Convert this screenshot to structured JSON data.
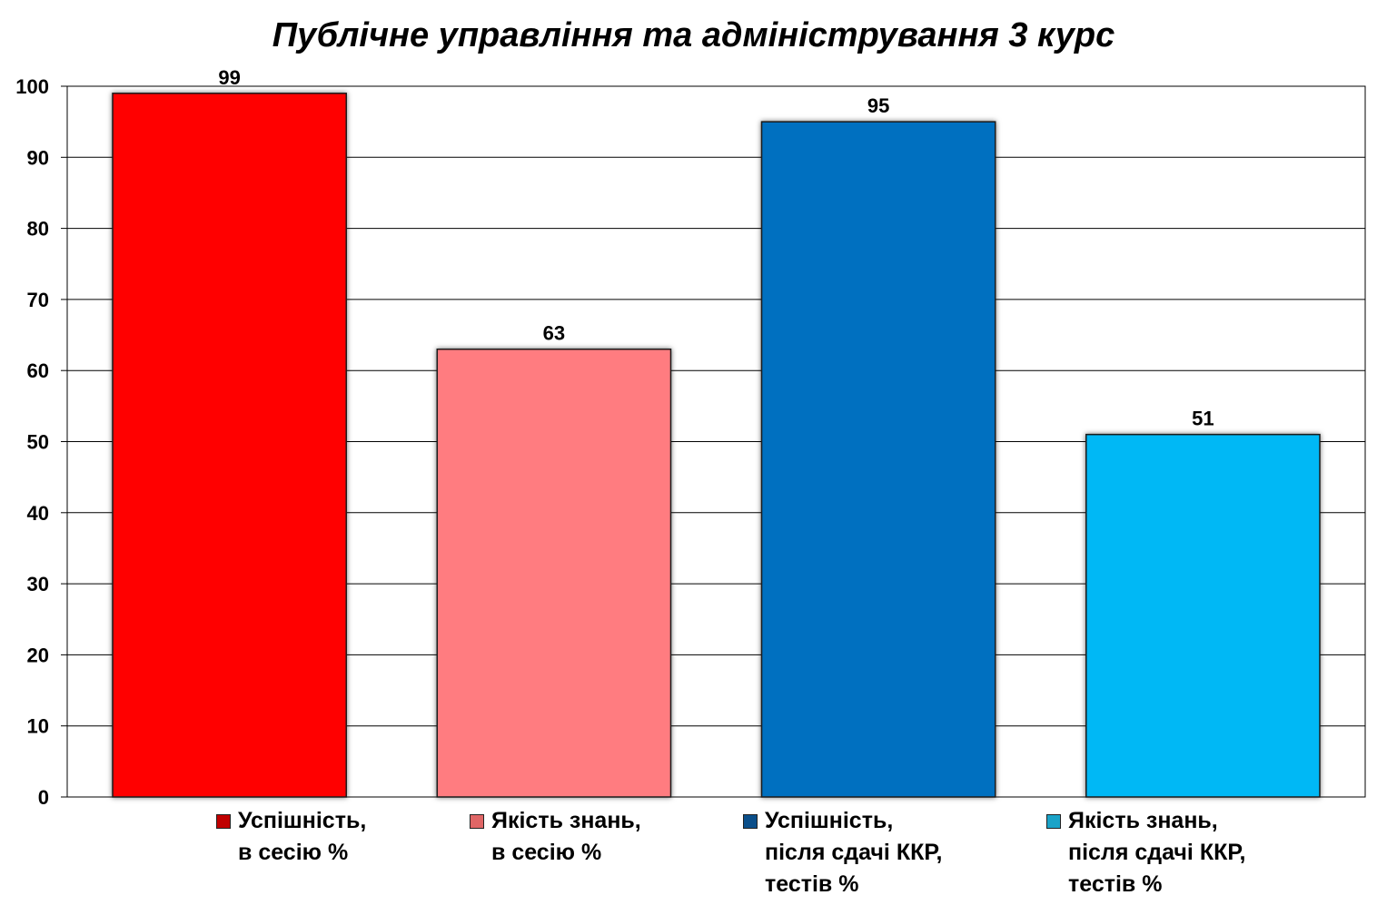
{
  "chart_data": {
    "type": "bar",
    "title": "Публічне управління та адміністрування 3 курс",
    "xlabel": "",
    "ylabel": "",
    "ylim": [
      0,
      100
    ],
    "yticks": [
      0,
      10,
      20,
      30,
      40,
      50,
      60,
      70,
      80,
      90,
      100
    ],
    "grid": true,
    "legend_position": "bottom",
    "categories": [
      "Успішність, в сесію %",
      "Якість знань, в сесію %",
      "Успішність, після сдачі ККР, тестів %",
      "Якість знань, після сдачі ККР, тестів %"
    ],
    "values": [
      99,
      63,
      95,
      51
    ],
    "colors": [
      "#ff0000",
      "#ff7c80",
      "#0070c0",
      "#00b8f5"
    ],
    "legend": [
      {
        "lines": [
          "Успішність,",
          "в сесію %"
        ],
        "color": "#c00000"
      },
      {
        "lines": [
          "Якість знань,",
          "в сесію %"
        ],
        "color": "#e06666"
      },
      {
        "lines": [
          "Успішність,",
          "після сдачі ККР,",
          "тестів %"
        ],
        "color": "#0b4f8a"
      },
      {
        "lines": [
          "Якість знань,",
          "після сдачі ККР,",
          "тестів %"
        ],
        "color": "#1aa3c8"
      }
    ]
  }
}
